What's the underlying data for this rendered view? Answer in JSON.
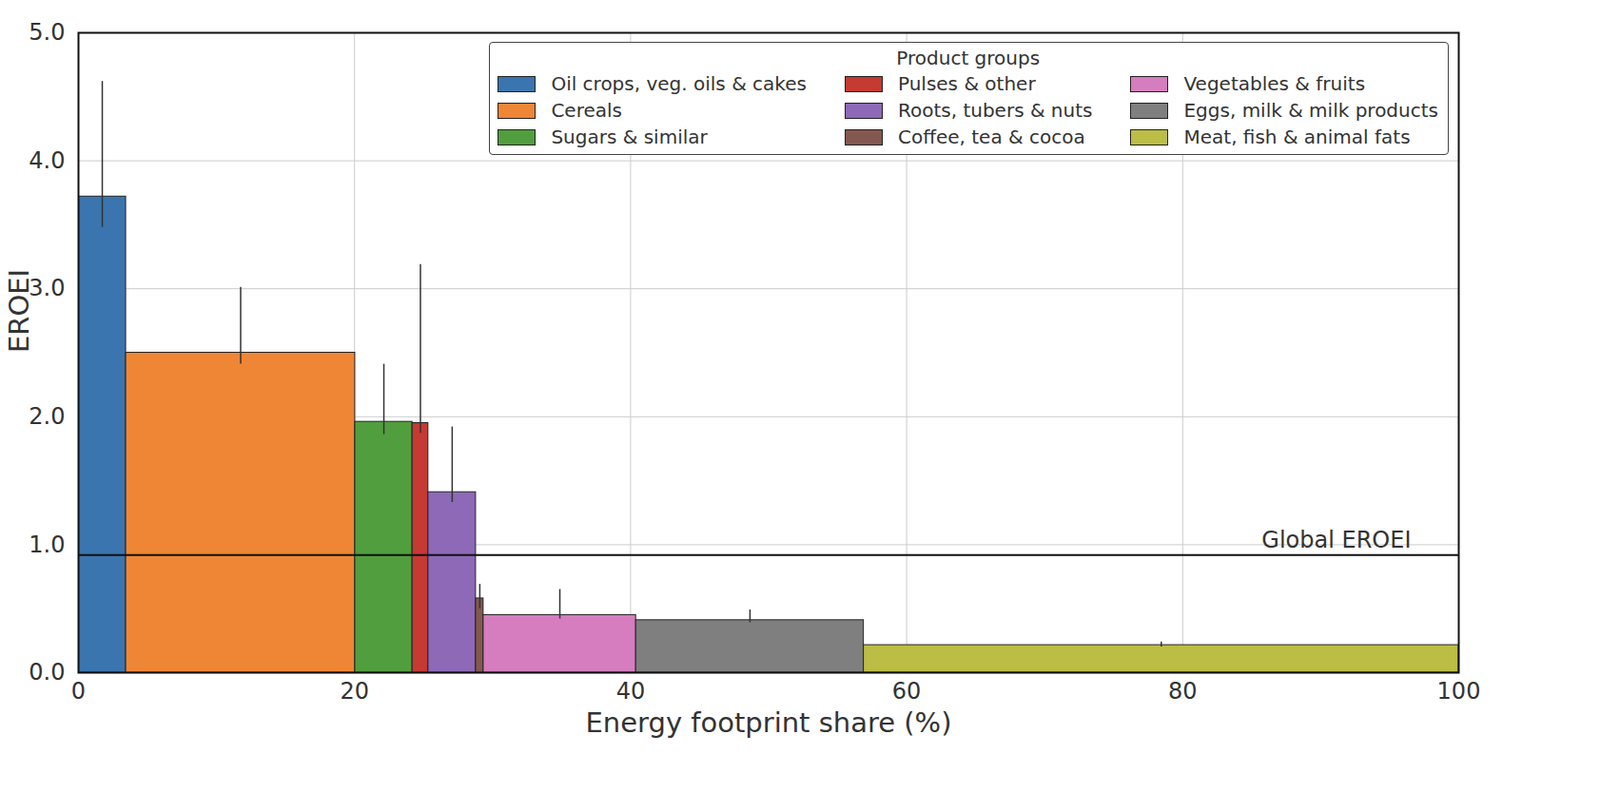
{
  "chart_data": {
    "type": "bar",
    "x_label": "Energy footprint share (%)",
    "y_label": "EROEI",
    "legend_title": "Product groups",
    "legend": "upper right",
    "grid": true,
    "categories": [
      "Oil crops, veg. oils & cakes",
      "Cereals",
      "Sugars & similar",
      "Pulses & other",
      "Roots, tubers & nuts",
      "Coffee, tea & cocoa",
      "Vegetables & fruits",
      "Eggs, milk & milk products",
      "Meat, fish & animal fats"
    ],
    "values": [
      3.72,
      2.5,
      1.96,
      1.95,
      1.41,
      0.58,
      0.45,
      0.41,
      0.215
    ],
    "shares": [
      3.45,
      16.6,
      4.15,
      1.15,
      3.45,
      0.55,
      11.05,
      16.5,
      43.1
    ],
    "error_low": [
      3.48,
      2.41,
      1.86,
      1.87,
      1.33,
      0.5,
      0.42,
      0.39,
      0.2
    ],
    "error_high": [
      4.62,
      3.01,
      2.41,
      3.19,
      1.92,
      0.69,
      0.65,
      0.49,
      0.24
    ],
    "colors": [
      "#3b75af",
      "#ef8636",
      "#519e3e",
      "#c53a32",
      "#8d69b8",
      "#84584e",
      "#d57dbe",
      "#7f7f7f",
      "#bcbd45"
    ],
    "reference_line": {
      "label": "Global EROEI",
      "value": 0.92
    },
    "xlim": [
      0,
      100
    ],
    "xticks": [
      0,
      20,
      40,
      60,
      80,
      100
    ],
    "ylim": [
      0,
      5
    ],
    "yticks": [
      0,
      1,
      2,
      3,
      4,
      5
    ]
  }
}
